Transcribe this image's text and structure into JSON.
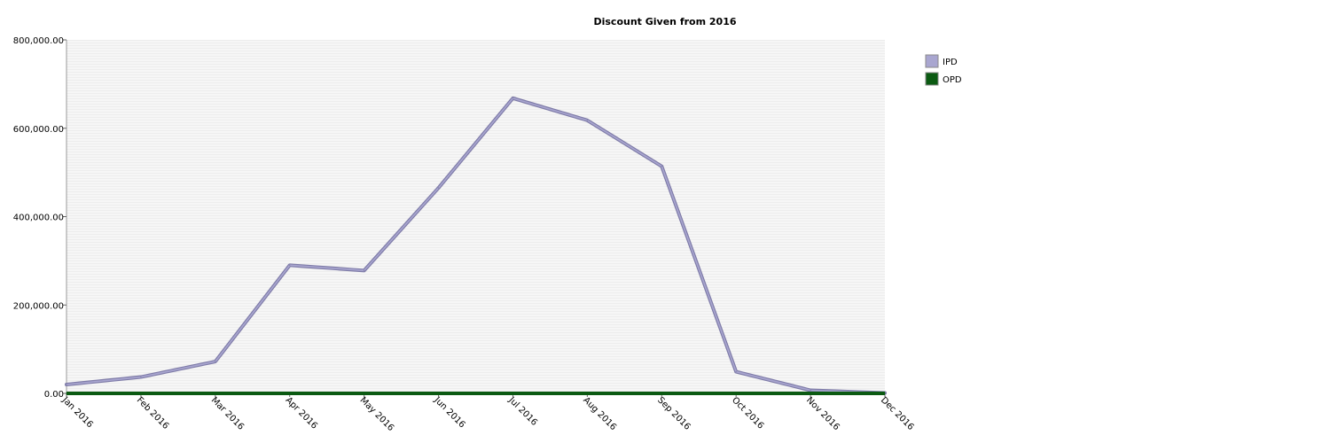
{
  "chart_data": {
    "type": "line",
    "title": "Discount Given from 2016",
    "xlabel": "",
    "ylabel": "",
    "categories": [
      "Jan 2016",
      "Feb 2016",
      "Mar 2016",
      "Apr 2016",
      "May 2016",
      "Jun 2016",
      "Jul 2016",
      "Aug 2016",
      "Sep 2016",
      "Oct 2016",
      "Nov 2016",
      "Dec 2016"
    ],
    "ylim": [
      0,
      800000
    ],
    "yticks": [
      0,
      200000,
      400000,
      600000,
      800000
    ],
    "ytick_labels": [
      "0.00",
      "200,000.00",
      "400,000.00",
      "600,000.00",
      "800,000.00"
    ],
    "grid": true,
    "legend_position": "right",
    "series": [
      {
        "name": "IPD",
        "color": "#a9a6d0",
        "line_color": "#7f7ca8",
        "values": [
          20000,
          37000,
          72000,
          290000,
          278000,
          465000,
          668000,
          618000,
          514000,
          49000,
          7000,
          1000
        ]
      },
      {
        "name": "OPD",
        "color": "#0b5a12",
        "line_color": "#0b5a12",
        "values": [
          0,
          0,
          0,
          0,
          0,
          0,
          0,
          0,
          0,
          0,
          0,
          0
        ]
      }
    ]
  }
}
